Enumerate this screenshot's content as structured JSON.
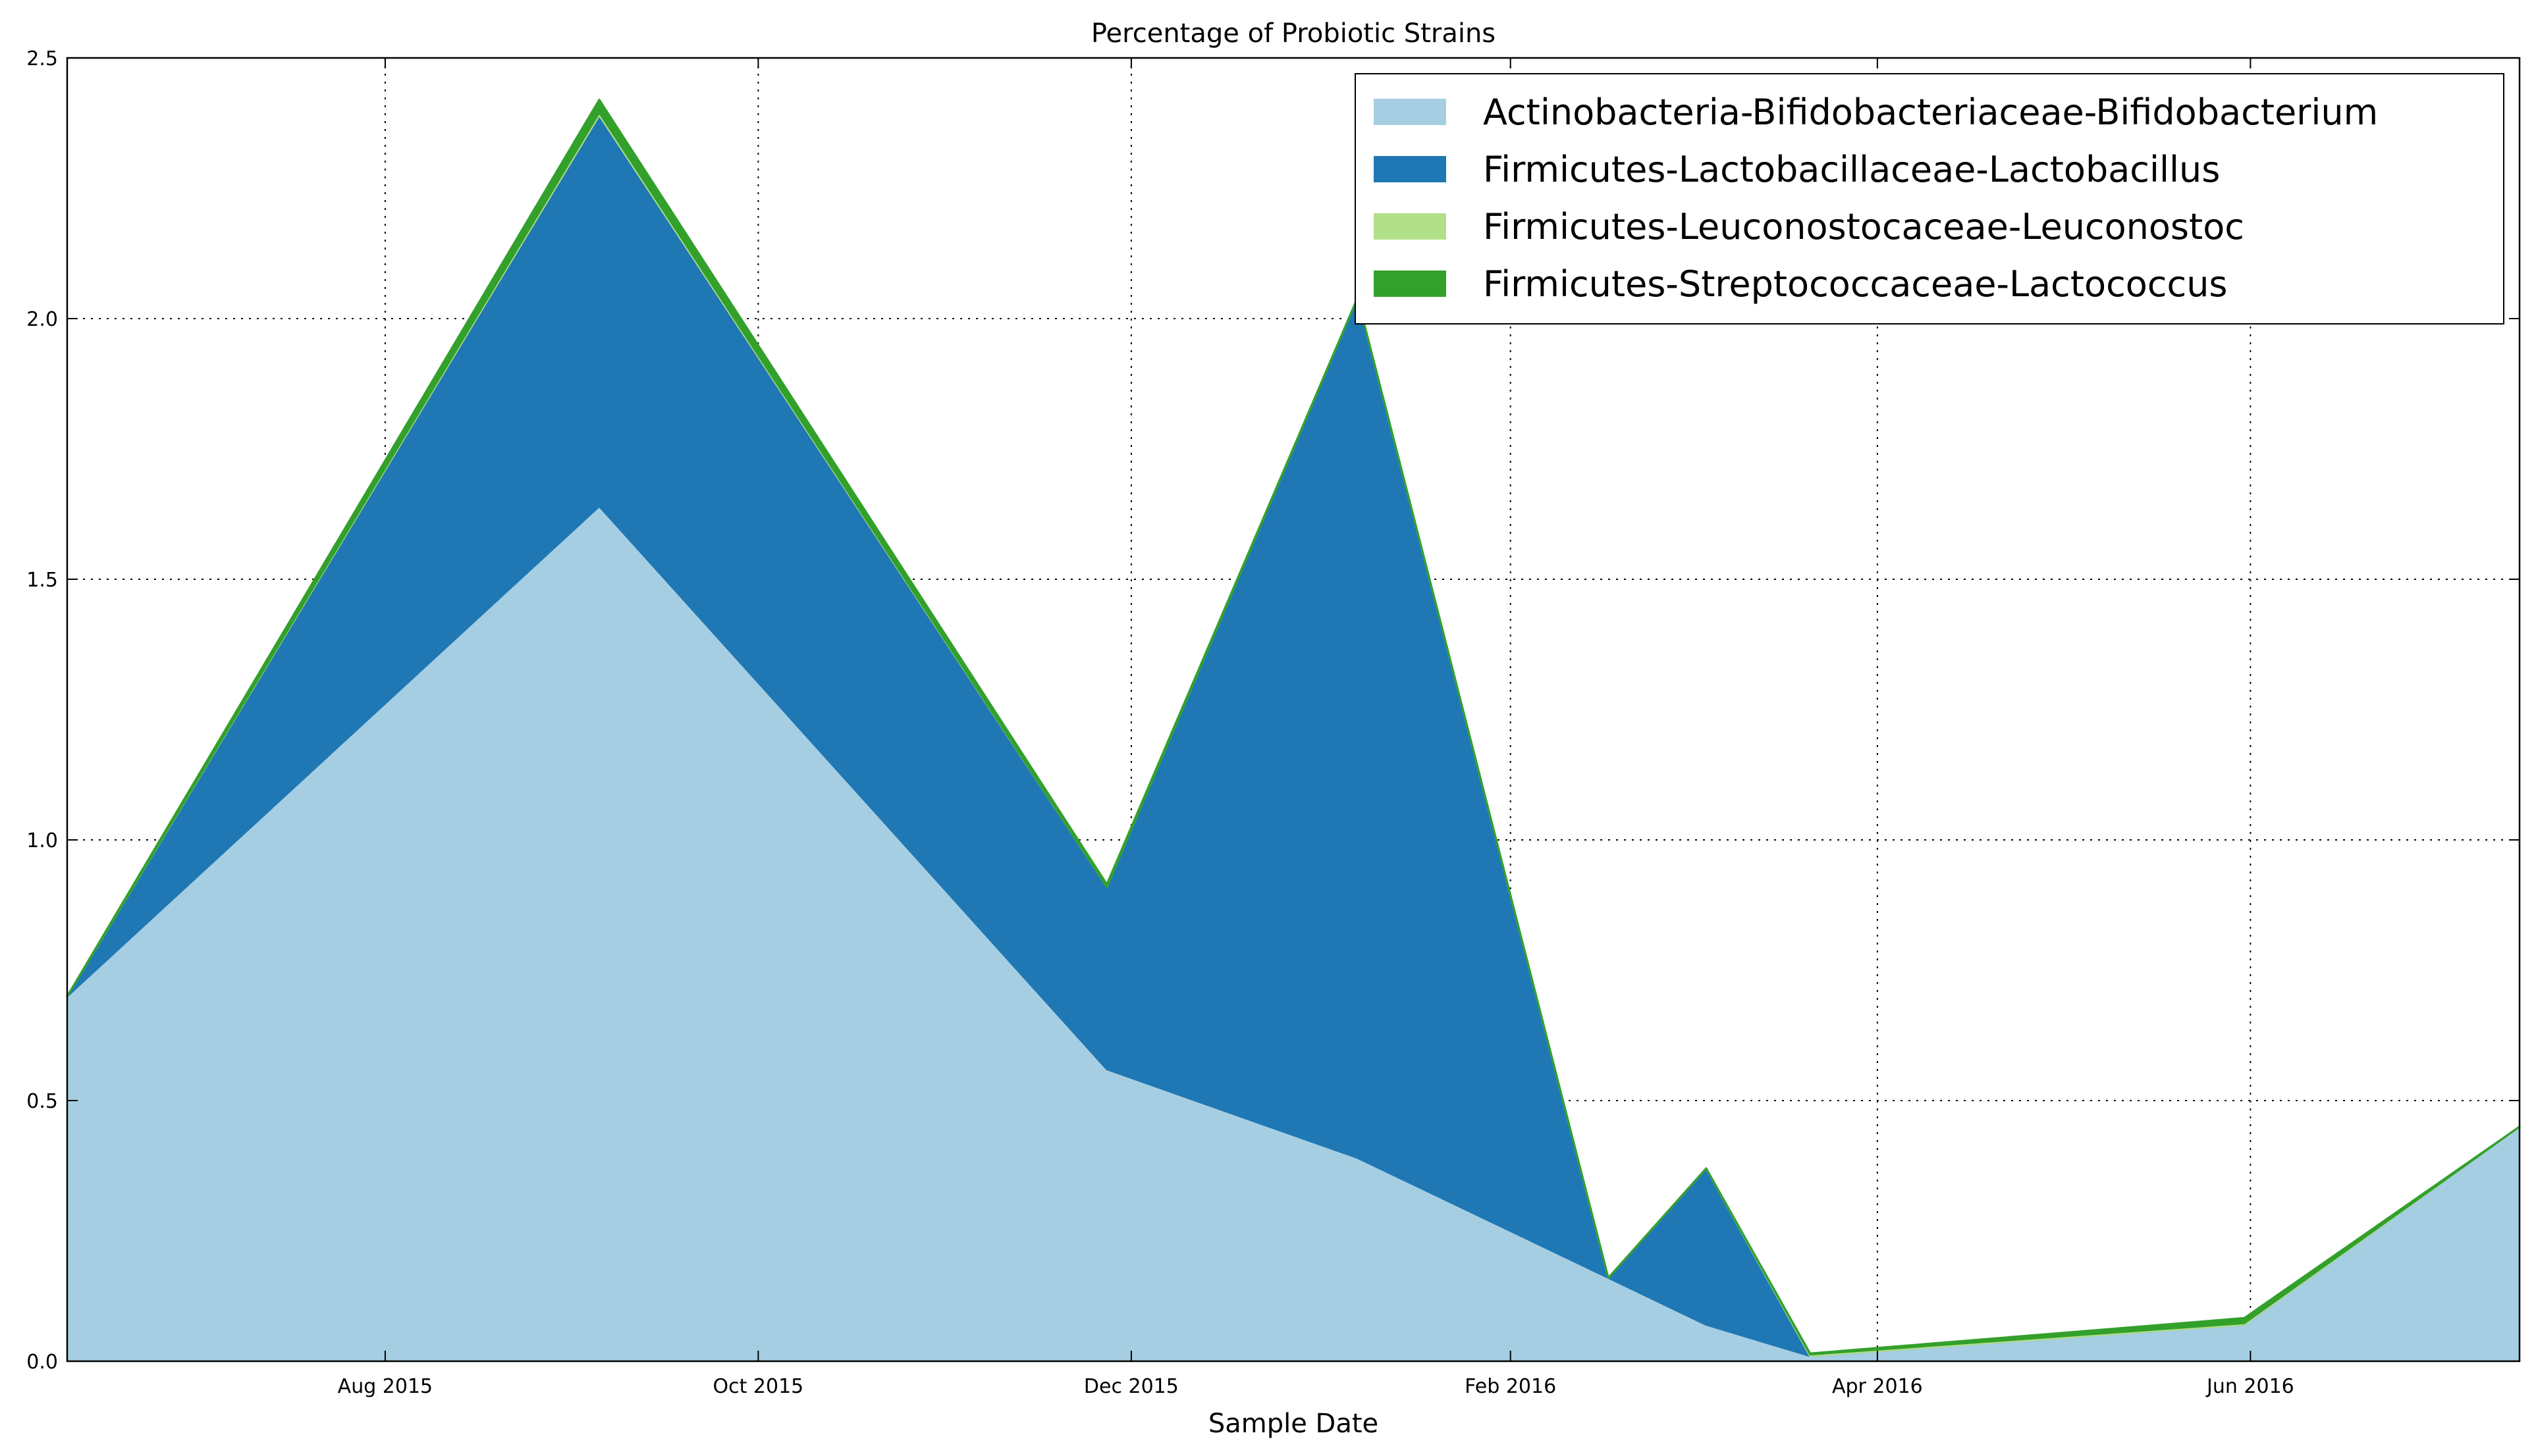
{
  "chart_data": {
    "type": "area",
    "stacked": true,
    "title": "Percentage of Probiotic Strains",
    "xlabel": "Sample Date",
    "ylabel": "",
    "x": [
      "2015-06-10",
      "2015-09-05",
      "2015-11-27",
      "2016-01-07",
      "2016-02-17",
      "2016-03-04",
      "2016-03-21",
      "2016-05-31",
      "2016-07-15"
    ],
    "xlim": [
      "2015-06-10",
      "2016-07-15"
    ],
    "xticks": [
      {
        "date": "2015-08-01",
        "label": "Aug 2015"
      },
      {
        "date": "2015-10-01",
        "label": "Oct 2015"
      },
      {
        "date": "2015-12-01",
        "label": "Dec 2015"
      },
      {
        "date": "2016-02-01",
        "label": "Feb 2016"
      },
      {
        "date": "2016-04-01",
        "label": "Apr 2016"
      },
      {
        "date": "2016-06-01",
        "label": "Jun 2016"
      }
    ],
    "ylim": [
      0,
      2.5
    ],
    "yticks": [
      "0.0",
      "0.5",
      "1.0",
      "1.5",
      "2.0",
      "2.5"
    ],
    "grid": true,
    "legend_position": "top-right",
    "series": [
      {
        "name": "Actinobacteria-Bifidobacteriaceae-Bifidobacterium",
        "color": "#a6cee3",
        "values": [
          0.7,
          1.64,
          0.56,
          0.39,
          0.16,
          0.07,
          0.01,
          0.07,
          0.45
        ]
      },
      {
        "name": "Firmicutes-Lactobacillaceae-Lactobacillus",
        "color": "#1f78b4",
        "values": [
          0.0,
          0.75,
          0.35,
          1.65,
          0.0,
          0.3,
          0.0,
          0.0,
          0.0
        ]
      },
      {
        "name": "Firmicutes-Leuconostocaceae-Leuconostoc",
        "color": "#b2df8a",
        "values": [
          0.0,
          0.005,
          0.0,
          0.0,
          0.0,
          0.0,
          0.003,
          0.003,
          0.0
        ]
      },
      {
        "name": "Firmicutes-Streptococcaceae-Lactococcus",
        "color": "#33a02c",
        "values": [
          0.0,
          0.025,
          0.005,
          0.0,
          0.0,
          0.0,
          0.002,
          0.01,
          0.0
        ]
      }
    ]
  }
}
